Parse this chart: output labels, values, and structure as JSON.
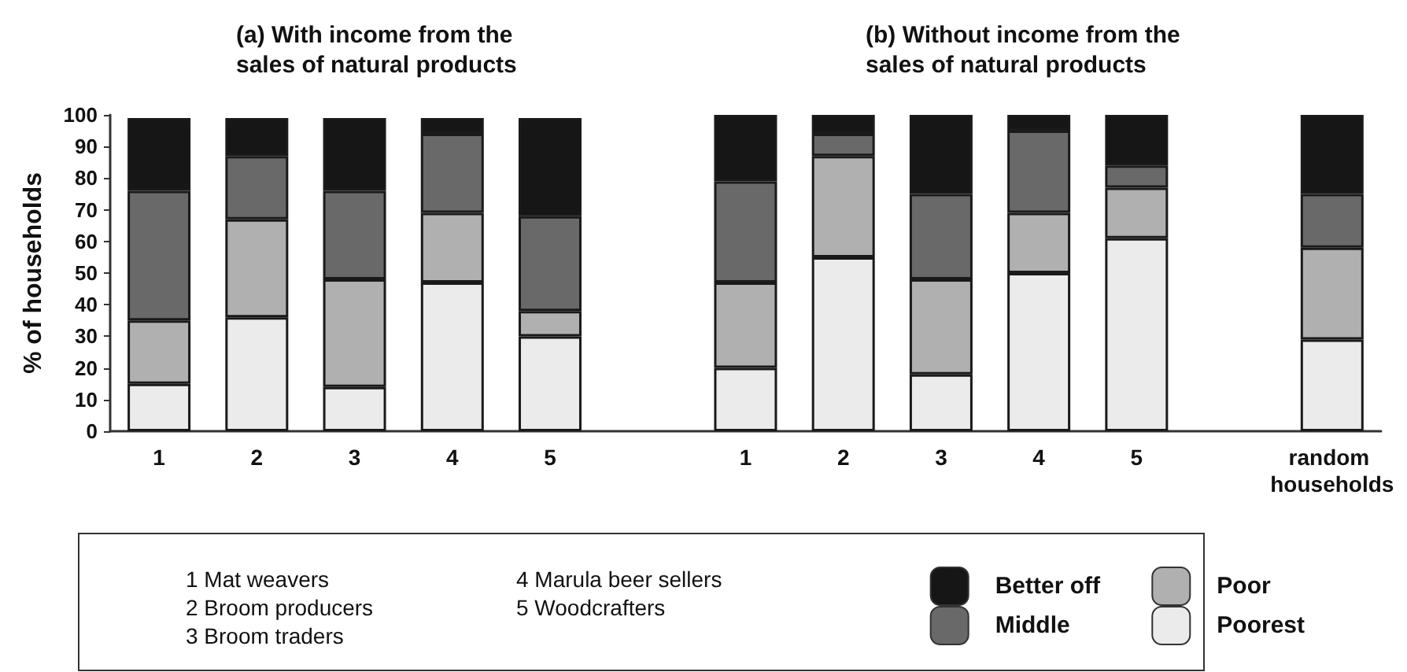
{
  "chart_data": {
    "type": "bar",
    "title": "(a) With income from the sales of natural products",
    "ylabel": "% of households",
    "categories": [
      "1",
      "2",
      "3",
      "4",
      "5",
      null,
      "1",
      "2",
      "3",
      "4",
      "5",
      null,
      "random households"
    ],
    "stacked": true,
    "ylim": [
      0,
      100
    ],
    "yticks": [
      0,
      10,
      20,
      30,
      40,
      50,
      60,
      70,
      80,
      90,
      100
    ],
    "grid": false,
    "legend": "bottom",
    "annotations": [
      "(b) Without income from the sales of natural products",
      "1 Mat weavers",
      "2 Broom producers",
      "3 Broom traders",
      "4 Marula beer sellers",
      "5 Woodcrafters"
    ],
    "series": [
      {
        "name": "Poorest",
        "color": "#ebebeb",
        "values": [
          15,
          36,
          14,
          47,
          30,
          null,
          20,
          55,
          18,
          50,
          61,
          null,
          29
        ]
      },
      {
        "name": "Poor",
        "color": "#b0b0b0",
        "values": [
          20,
          31,
          34,
          22,
          8,
          null,
          27,
          32,
          30,
          19,
          16,
          null,
          29
        ]
      },
      {
        "name": "Middle",
        "color": "#696969",
        "values": [
          41,
          20,
          28,
          25,
          30,
          null,
          32,
          7,
          27,
          26,
          7,
          null,
          17
        ]
      },
      {
        "name": "Better off",
        "color": "#161616",
        "values": [
          23,
          12,
          23,
          5,
          31,
          null,
          21,
          6,
          25,
          5,
          16,
          null,
          25
        ]
      }
    ]
  }
}
